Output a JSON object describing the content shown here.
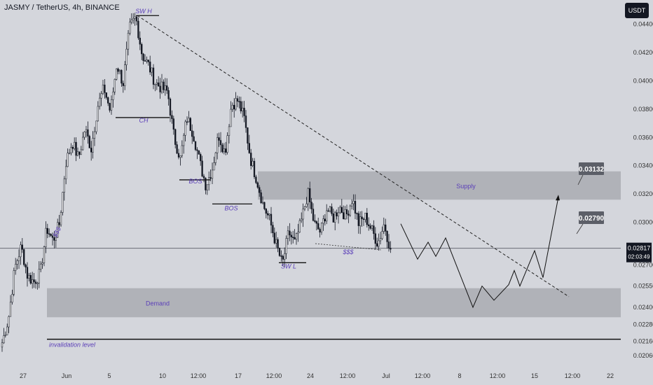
{
  "header": {
    "title": "JASMY / TetherUS, 4h, BINANCE",
    "currency_button": "USDT"
  },
  "colors": {
    "background": "#d4d6dc",
    "candle": "#131722",
    "zone": "#a9abb1",
    "annotation": "#5b3fb8",
    "label_bg": "#5c5f68",
    "current_bg": "#131722"
  },
  "chart_data": {
    "type": "candlestick",
    "title": "JASMY / TetherUS, 4h, BINANCE",
    "ylim": [
      0.0199,
      0.0457
    ],
    "y_ticks": [
      "0.04400",
      "0.04200",
      "0.04000",
      "0.03800",
      "0.03600",
      "0.03400",
      "0.03200",
      "0.03000",
      "0.02700",
      "0.02550",
      "0.02400",
      "0.02280",
      "0.02160",
      "0.02060"
    ],
    "x_ticks": [
      "27",
      "Jun",
      "5",
      "10",
      "12:00",
      "17",
      "12:00",
      "24",
      "12:00",
      "Jul",
      "12:00",
      "8",
      "12:00",
      "15",
      "12:00",
      "22"
    ],
    "price_waypoints": [
      0.0215,
      0.0232,
      0.0268,
      0.0283,
      0.0262,
      0.0258,
      0.0264,
      0.0296,
      0.0287,
      0.0299,
      0.0342,
      0.0357,
      0.0345,
      0.0366,
      0.0352,
      0.0382,
      0.0395,
      0.0378,
      0.0412,
      0.0398,
      0.0437,
      0.0445,
      0.0418,
      0.0411,
      0.0399,
      0.0395,
      0.0392,
      0.036,
      0.0345,
      0.0374,
      0.0363,
      0.0343,
      0.0326,
      0.0338,
      0.0362,
      0.0349,
      0.0383,
      0.0386,
      0.0374,
      0.0345,
      0.033,
      0.0312,
      0.0302,
      0.0285,
      0.027,
      0.0293,
      0.0285,
      0.0301,
      0.0321,
      0.0299,
      0.0293,
      0.031,
      0.0303,
      0.0311,
      0.0304,
      0.0317,
      0.0299,
      0.0304,
      0.0295,
      0.0285,
      0.0299,
      0.0281
    ],
    "zones": [
      {
        "name": "supply",
        "label": "Supply",
        "top": 0.0336,
        "bottom": 0.0316
      },
      {
        "name": "demand",
        "label": "Demand",
        "top": 0.02535,
        "bottom": 0.0233
      }
    ],
    "lines": [
      {
        "name": "invalidation",
        "label": "invalidation level",
        "value": 0.02175
      },
      {
        "name": "current-price",
        "value": 0.02817
      }
    ],
    "annotations": [
      {
        "text": "SW H",
        "price": 0.0449
      },
      {
        "text": "CH",
        "price": 0.0372
      },
      {
        "text": "BOS",
        "price": 0.0329
      },
      {
        "text": "BOS",
        "price": 0.031
      },
      {
        "text": "$$$",
        "price": 0.0294
      },
      {
        "text": "SW L",
        "price": 0.0269
      },
      {
        "text": "$$$",
        "price": 0.0279
      }
    ],
    "price_labels": [
      {
        "name": "target",
        "text": "0.03132"
      },
      {
        "name": "entry",
        "text": "0.02790"
      }
    ],
    "current_price": {
      "text": "0.02817",
      "countdown": "02:03:49"
    },
    "projection": [
      0.0299,
      0.0274,
      0.0286,
      0.0276,
      0.0289,
      0.024,
      0.0255,
      0.0245,
      0.0256,
      0.0266,
      0.0255,
      0.028,
      0.0261,
      0.0318
    ]
  }
}
